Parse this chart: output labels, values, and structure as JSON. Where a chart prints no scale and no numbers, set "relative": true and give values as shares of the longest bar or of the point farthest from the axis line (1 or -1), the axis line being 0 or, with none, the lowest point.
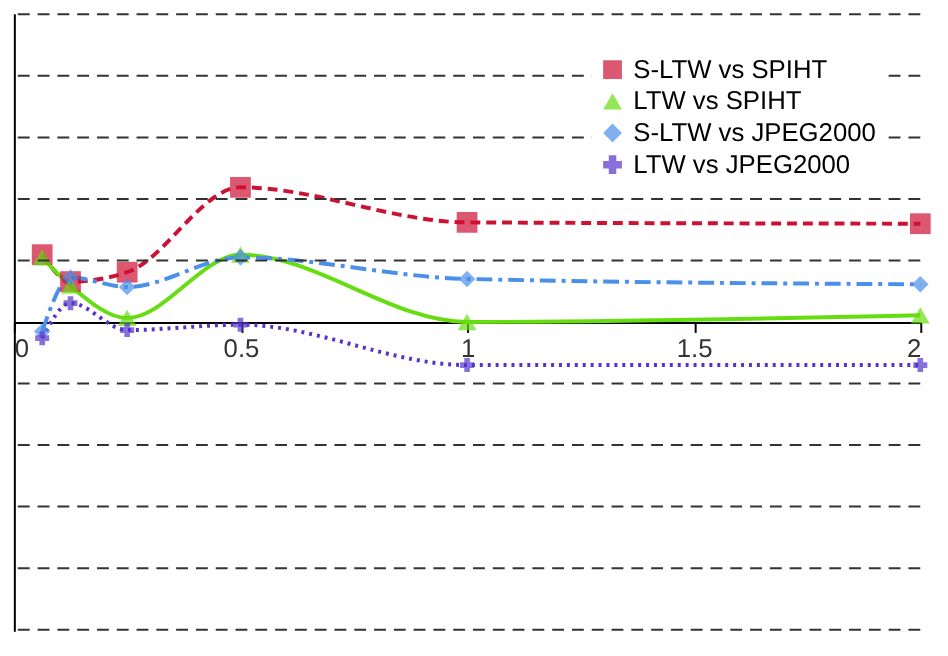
{
  "chart_data": {
    "type": "line",
    "relative": true,
    "x": [
      0.0625,
      0.125,
      0.25,
      0.5,
      1,
      2
    ],
    "xlim": [
      0,
      2
    ],
    "xticks": [
      0,
      0.5,
      1,
      1.5,
      2
    ],
    "series": [
      {
        "name": "S-LTW vs SPIHT",
        "color": "#cc1133",
        "marker": "square",
        "line_style": "dashed",
        "values": [
          0.5,
          0.3,
          0.37,
          1,
          0.74,
          0.73
        ]
      },
      {
        "name": "LTW vs SPIHT",
        "color": "#66dd11",
        "marker": "triangle",
        "line_style": "solid",
        "values": [
          0.48,
          0.27,
          0.03,
          0.5,
          0,
          0.05
        ]
      },
      {
        "name": "S-LTW vs JPEG2000",
        "color": "#4a8fe8",
        "marker": "diamond",
        "line_style": "dashdot",
        "values": [
          -0.07,
          0.33,
          0.26,
          0.48,
          0.32,
          0.28
        ]
      },
      {
        "name": "LTW vs JPEG2000",
        "color": "#5533cc",
        "marker": "cross",
        "line_style": "dotted",
        "values": [
          -0.12,
          0.14,
          -0.06,
          -0.02,
          -0.32,
          -0.32
        ]
      }
    ],
    "ref_lines": [
      {
        "axis": "y",
        "value": 2.286,
        "color": "#333333",
        "line_style": "dashed"
      },
      {
        "axis": "y",
        "value": 1.829,
        "color": "#333333",
        "line_style": "dashed"
      },
      {
        "axis": "y",
        "value": 1.371,
        "color": "#333333",
        "line_style": "dashed"
      },
      {
        "axis": "y",
        "value": 0.914,
        "color": "#333333",
        "line_style": "dashed"
      },
      {
        "axis": "y",
        "value": 0.457,
        "color": "#333333",
        "line_style": "dashed"
      },
      {
        "axis": "y",
        "value": -0.457,
        "color": "#333333",
        "line_style": "dashed"
      },
      {
        "axis": "y",
        "value": -0.914,
        "color": "#333333",
        "line_style": "dashed"
      },
      {
        "axis": "y",
        "value": -1.371,
        "color": "#333333",
        "line_style": "dashed"
      },
      {
        "axis": "y",
        "value": -1.829,
        "color": "#333333",
        "line_style": "dashed"
      },
      {
        "axis": "y",
        "value": -2.286,
        "color": "#333333",
        "line_style": "dashed"
      }
    ],
    "legend": "top right"
  }
}
